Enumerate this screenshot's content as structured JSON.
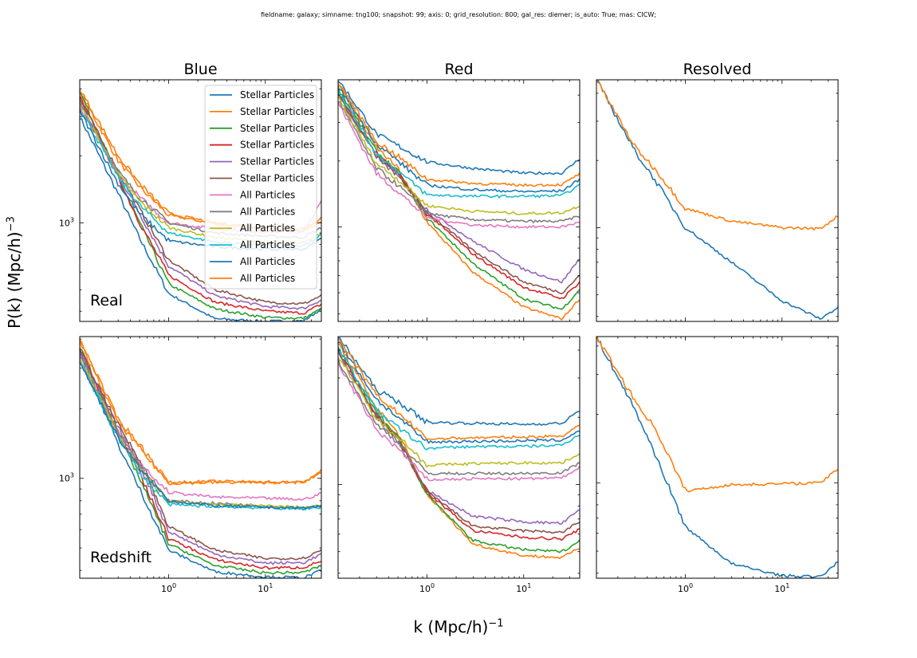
{
  "figure": {
    "suptitle": "fieldname: galaxy; simname: tng100; snapshot: 99; axis: 0; grid_resolution: 800; gal_res: diemer; is_auto: True; mas: CICW;",
    "xlabel": "k (Mpc/h)",
    "xlabel_exp": "−1",
    "ylabel": "P(k) (Mpc/h)",
    "ylabel_exp": "−3"
  },
  "chart_data": {
    "type": "line",
    "x_scale": "log",
    "y_scale": "log",
    "xlim": [
      0.12,
      38
    ],
    "xticks": [
      {
        "value": 1,
        "base": "10",
        "exp": "0"
      },
      {
        "value": 10,
        "base": "10",
        "exp": "1"
      }
    ],
    "yticks": [
      {
        "value": 1000,
        "base": "10",
        "exp": "3"
      }
    ],
    "grid": false,
    "legend_location": "top-right of first panel",
    "colors": [
      "#1f77b4",
      "#ff7f0e",
      "#2ca02c",
      "#d62728",
      "#9467bd",
      "#8c564b",
      "#e377c2",
      "#7f7f7f",
      "#bcbd22",
      "#17becf",
      "#1f77b4",
      "#ff7f0e"
    ],
    "legend": [
      "Stellar Particles",
      "Stellar Particles",
      "Stellar Particles",
      "Stellar Particles",
      "Stellar Particles",
      "Stellar Particles",
      "All Particles",
      "All Particles",
      "All Particles",
      "All Particles",
      "All Particles",
      "All Particles"
    ],
    "column_titles": [
      "Blue",
      "Red",
      "Resolved"
    ],
    "row_labels": [
      "Real",
      "Redshift"
    ],
    "k_nodes": [
      0.12,
      0.3,
      0.5,
      1,
      3,
      10,
      25,
      38
    ],
    "panels": [
      {
        "row": 0,
        "col": 0,
        "ylim": [
          360,
          4400
        ],
        "series": [
          {
            "color": "#1f77b4",
            "pk": [
              3000,
              1350,
              850,
              480,
              370,
              360,
              362,
              410
            ]
          },
          {
            "color": "#ff7f0e",
            "pk": [
              3900,
              1900,
              1450,
              1080,
              990,
              930,
              920,
              1020
            ]
          },
          {
            "color": "#2ca02c",
            "pk": [
              3900,
              1600,
              1000,
              530,
              410,
              375,
              372,
              410
            ]
          },
          {
            "color": "#d62728",
            "pk": [
              3700,
              1600,
              1000,
              580,
              440,
              400,
              392,
              430
            ]
          },
          {
            "color": "#9467bd",
            "pk": [
              3500,
              1650,
              1100,
              640,
              470,
              420,
              412,
              450
            ]
          },
          {
            "color": "#8c564b",
            "pk": [
              3600,
              1700,
              1150,
              680,
              500,
              440,
              432,
              470
            ]
          },
          {
            "color": "#e377c2",
            "pk": [
              3300,
              1650,
              1300,
              1000,
              940,
              910,
              905,
              1250
            ]
          },
          {
            "color": "#7f7f7f",
            "pk": [
              3400,
              1700,
              1300,
              1000,
              900,
              870,
              860,
              950
            ]
          },
          {
            "color": "#bcbd22",
            "pk": [
              3400,
              1650,
              1250,
              950,
              860,
              820,
              815,
              900
            ]
          },
          {
            "color": "#17becf",
            "pk": [
              3300,
              1600,
              1200,
              900,
              820,
              790,
              785,
              880
            ]
          },
          {
            "color": "#1f77b4",
            "pk": [
              3200,
              1500,
              1100,
              830,
              780,
              760,
              760,
              850
            ]
          },
          {
            "color": "#ff7f0e",
            "pk": [
              4000,
              2000,
              1500,
              1100,
              1000,
              950,
              940,
              1050
            ]
          }
        ]
      },
      {
        "row": 0,
        "col": 1,
        "ylim": [
          370,
          4700
        ],
        "series": [
          {
            "color": "#1f77b4",
            "pk": [
              4700,
              2650,
              2350,
              1980,
              1850,
              1760,
              1760,
              2050
            ]
          },
          {
            "color": "#ff7f0e",
            "pk": [
              4500,
              2300,
              1850,
              1050,
              620,
              430,
              380,
              470
            ]
          },
          {
            "color": "#2ca02c",
            "pk": [
              4300,
              2200,
              1780,
              1100,
              680,
              470,
              420,
              520
            ]
          },
          {
            "color": "#d62728",
            "pk": [
              4100,
              2150,
              1750,
              1150,
              750,
              530,
              470,
              560
            ]
          },
          {
            "color": "#9467bd",
            "pk": [
              4000,
              2100,
              1700,
              1200,
              860,
              640,
              560,
              720
            ]
          },
          {
            "color": "#8c564b",
            "pk": [
              4000,
              2100,
              1720,
              1170,
              780,
              560,
              500,
              600
            ]
          },
          {
            "color": "#e377c2",
            "pk": [
              3700,
              1750,
              1450,
              1100,
              1020,
              1000,
              1000,
              1050
            ]
          },
          {
            "color": "#7f7f7f",
            "pk": [
              3800,
              1850,
              1550,
              1150,
              1080,
              1060,
              1060,
              1120
            ]
          },
          {
            "color": "#bcbd22",
            "pk": [
              3900,
              1950,
              1650,
              1250,
              1180,
              1150,
              1160,
              1250
            ]
          },
          {
            "color": "#17becf",
            "pk": [
              4200,
              2150,
              1800,
              1400,
              1380,
              1380,
              1390,
              1550
            ]
          },
          {
            "color": "#1f77b4",
            "pk": [
              4400,
              2400,
              2000,
              1550,
              1480,
              1450,
              1460,
              1650
            ]
          },
          {
            "color": "#ff7f0e",
            "pk": [
              4600,
              2450,
              2100,
              1650,
              1580,
              1550,
              1560,
              1750
            ]
          }
        ]
      },
      {
        "row": 0,
        "col": 2,
        "ylim": [
          380,
          4600
        ],
        "series": [
          {
            "color": "#1f77b4",
            "pk": [
              4600,
              2200,
              1600,
              1000,
              700,
              470,
              390,
              440
            ]
          },
          {
            "color": "#ff7f0e",
            "pk": [
              4600,
              2300,
              1800,
              1220,
              1070,
              1000,
              990,
              1130
            ]
          }
        ]
      },
      {
        "row": 1,
        "col": 0,
        "ylim": [
          370,
          4100
        ],
        "series": [
          {
            "color": "#1f77b4",
            "pk": [
              3500,
              1400,
              900,
              490,
              395,
              375,
              372,
              400
            ]
          },
          {
            "color": "#ff7f0e",
            "pk": [
              3900,
              1750,
              1350,
              950,
              960,
              960,
              960,
              1060
            ]
          },
          {
            "color": "#2ca02c",
            "pk": [
              3700,
              1550,
              1000,
              520,
              420,
              390,
              392,
              420
            ]
          },
          {
            "color": "#d62728",
            "pk": [
              3600,
              1600,
              1050,
              550,
              445,
              410,
              412,
              440
            ]
          },
          {
            "color": "#9467bd",
            "pk": [
              3500,
              1650,
              1150,
              590,
              470,
              430,
              432,
              470
            ]
          },
          {
            "color": "#8c564b",
            "pk": [
              3600,
              1700,
              1200,
              620,
              490,
              450,
              452,
              490
            ]
          },
          {
            "color": "#e377c2",
            "pk": [
              3300,
              1550,
              1150,
              870,
              830,
              820,
              810,
              860
            ]
          },
          {
            "color": "#7f7f7f",
            "pk": [
              3400,
              1600,
              1150,
              800,
              780,
              760,
              740,
              760
            ]
          },
          {
            "color": "#bcbd22",
            "pk": [
              3300,
              1550,
              1100,
              790,
              770,
              760,
              750,
              760
            ]
          },
          {
            "color": "#17becf",
            "pk": [
              3200,
              1500,
              1050,
              770,
              755,
              745,
              738,
              750
            ]
          },
          {
            "color": "#1f77b4",
            "pk": [
              3200,
              1500,
              1100,
              800,
              760,
              750,
              745,
              760
            ]
          },
          {
            "color": "#ff7f0e",
            "pk": [
              4000,
              1800,
              1400,
              960,
              970,
              965,
              962,
              1080
            ]
          }
        ]
      },
      {
        "row": 1,
        "col": 1,
        "ylim": [
          380,
          4600
        ],
        "series": [
          {
            "color": "#1f77b4",
            "pk": [
              4600,
              2650,
              2350,
              1900,
              1880,
              1860,
              1880,
              2150
            ]
          },
          {
            "color": "#ff7f0e",
            "pk": [
              4300,
              2200,
              1700,
              900,
              540,
              480,
              470,
              520
            ]
          },
          {
            "color": "#2ca02c",
            "pk": [
              4100,
              2100,
              1650,
              900,
              560,
              510,
              500,
              560
            ]
          },
          {
            "color": "#d62728",
            "pk": [
              4000,
              2050,
              1600,
              920,
              620,
              580,
              570,
              630
            ]
          },
          {
            "color": "#9467bd",
            "pk": [
              3900,
              2000,
              1550,
              940,
              720,
              680,
              670,
              770
            ]
          },
          {
            "color": "#8c564b",
            "pk": [
              3950,
              2020,
              1580,
              930,
              650,
              620,
              610,
              680
            ]
          },
          {
            "color": "#e377c2",
            "pk": [
              3500,
              1750,
              1450,
              1050,
              1060,
              1060,
              1070,
              1200
            ]
          },
          {
            "color": "#7f7f7f",
            "pk": [
              3600,
              1850,
              1550,
              1120,
              1120,
              1120,
              1130,
              1250
            ]
          },
          {
            "color": "#bcbd22",
            "pk": [
              3800,
              1950,
              1650,
              1220,
              1240,
              1250,
              1250,
              1380
            ]
          },
          {
            "color": "#17becf",
            "pk": [
              4100,
              2150,
              1800,
              1450,
              1480,
              1480,
              1500,
              1680
            ]
          },
          {
            "color": "#1f77b4",
            "pk": [
              4400,
              2400,
              2000,
              1550,
              1560,
              1570,
              1580,
              1750
            ]
          },
          {
            "color": "#ff7f0e",
            "pk": [
              4500,
              2500,
              2100,
              1600,
              1620,
              1630,
              1650,
              1850
            ]
          }
        ]
      },
      {
        "row": 1,
        "col": 2,
        "ylim": [
          380,
          4400
        ],
        "series": [
          {
            "color": "#1f77b4",
            "pk": [
              4400,
              2100,
              1300,
              640,
              440,
              390,
              385,
              450
            ]
          },
          {
            "color": "#ff7f0e",
            "pk": [
              4400,
              2300,
              1700,
              920,
              980,
              990,
              1000,
              1150
            ]
          }
        ]
      }
    ]
  }
}
